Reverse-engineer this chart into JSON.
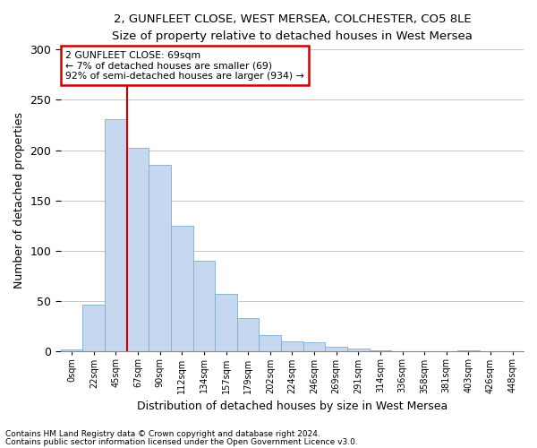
{
  "title_line1": "2, GUNFLEET CLOSE, WEST MERSEA, COLCHESTER, CO5 8LE",
  "title_line2": "Size of property relative to detached houses in West Mersea",
  "xlabel": "Distribution of detached houses by size in West Mersea",
  "ylabel": "Number of detached properties",
  "footnote1": "Contains HM Land Registry data © Crown copyright and database right 2024.",
  "footnote2": "Contains public sector information licensed under the Open Government Licence v3.0.",
  "annotation_line1": "2 GUNFLEET CLOSE: 69sqm",
  "annotation_line2": "← 7% of detached houses are smaller (69)",
  "annotation_line3": "92% of semi-detached houses are larger (934) →",
  "bar_values": [
    2,
    47,
    231,
    202,
    185,
    125,
    90,
    57,
    33,
    16,
    10,
    9,
    5,
    3,
    1,
    0,
    0,
    0,
    1,
    0,
    0
  ],
  "x_labels": [
    "0sqm",
    "22sqm",
    "45sqm",
    "67sqm",
    "90sqm",
    "112sqm",
    "134sqm",
    "157sqm",
    "179sqm",
    "202sqm",
    "224sqm",
    "246sqm",
    "269sqm",
    "291sqm",
    "314sqm",
    "336sqm",
    "358sqm",
    "381sqm",
    "403sqm",
    "426sqm",
    "448sqm"
  ],
  "bar_color": "#c5d8ef",
  "bar_edge_color": "#7badd4",
  "vline_color": "#cc0000",
  "vline_x": 3.0,
  "annotation_box_color": "#cc0000",
  "grid_color": "#c8c8c8",
  "background_color": "#ffffff",
  "ylim": [
    0,
    300
  ],
  "yticks": [
    0,
    50,
    100,
    150,
    200,
    250,
    300
  ]
}
